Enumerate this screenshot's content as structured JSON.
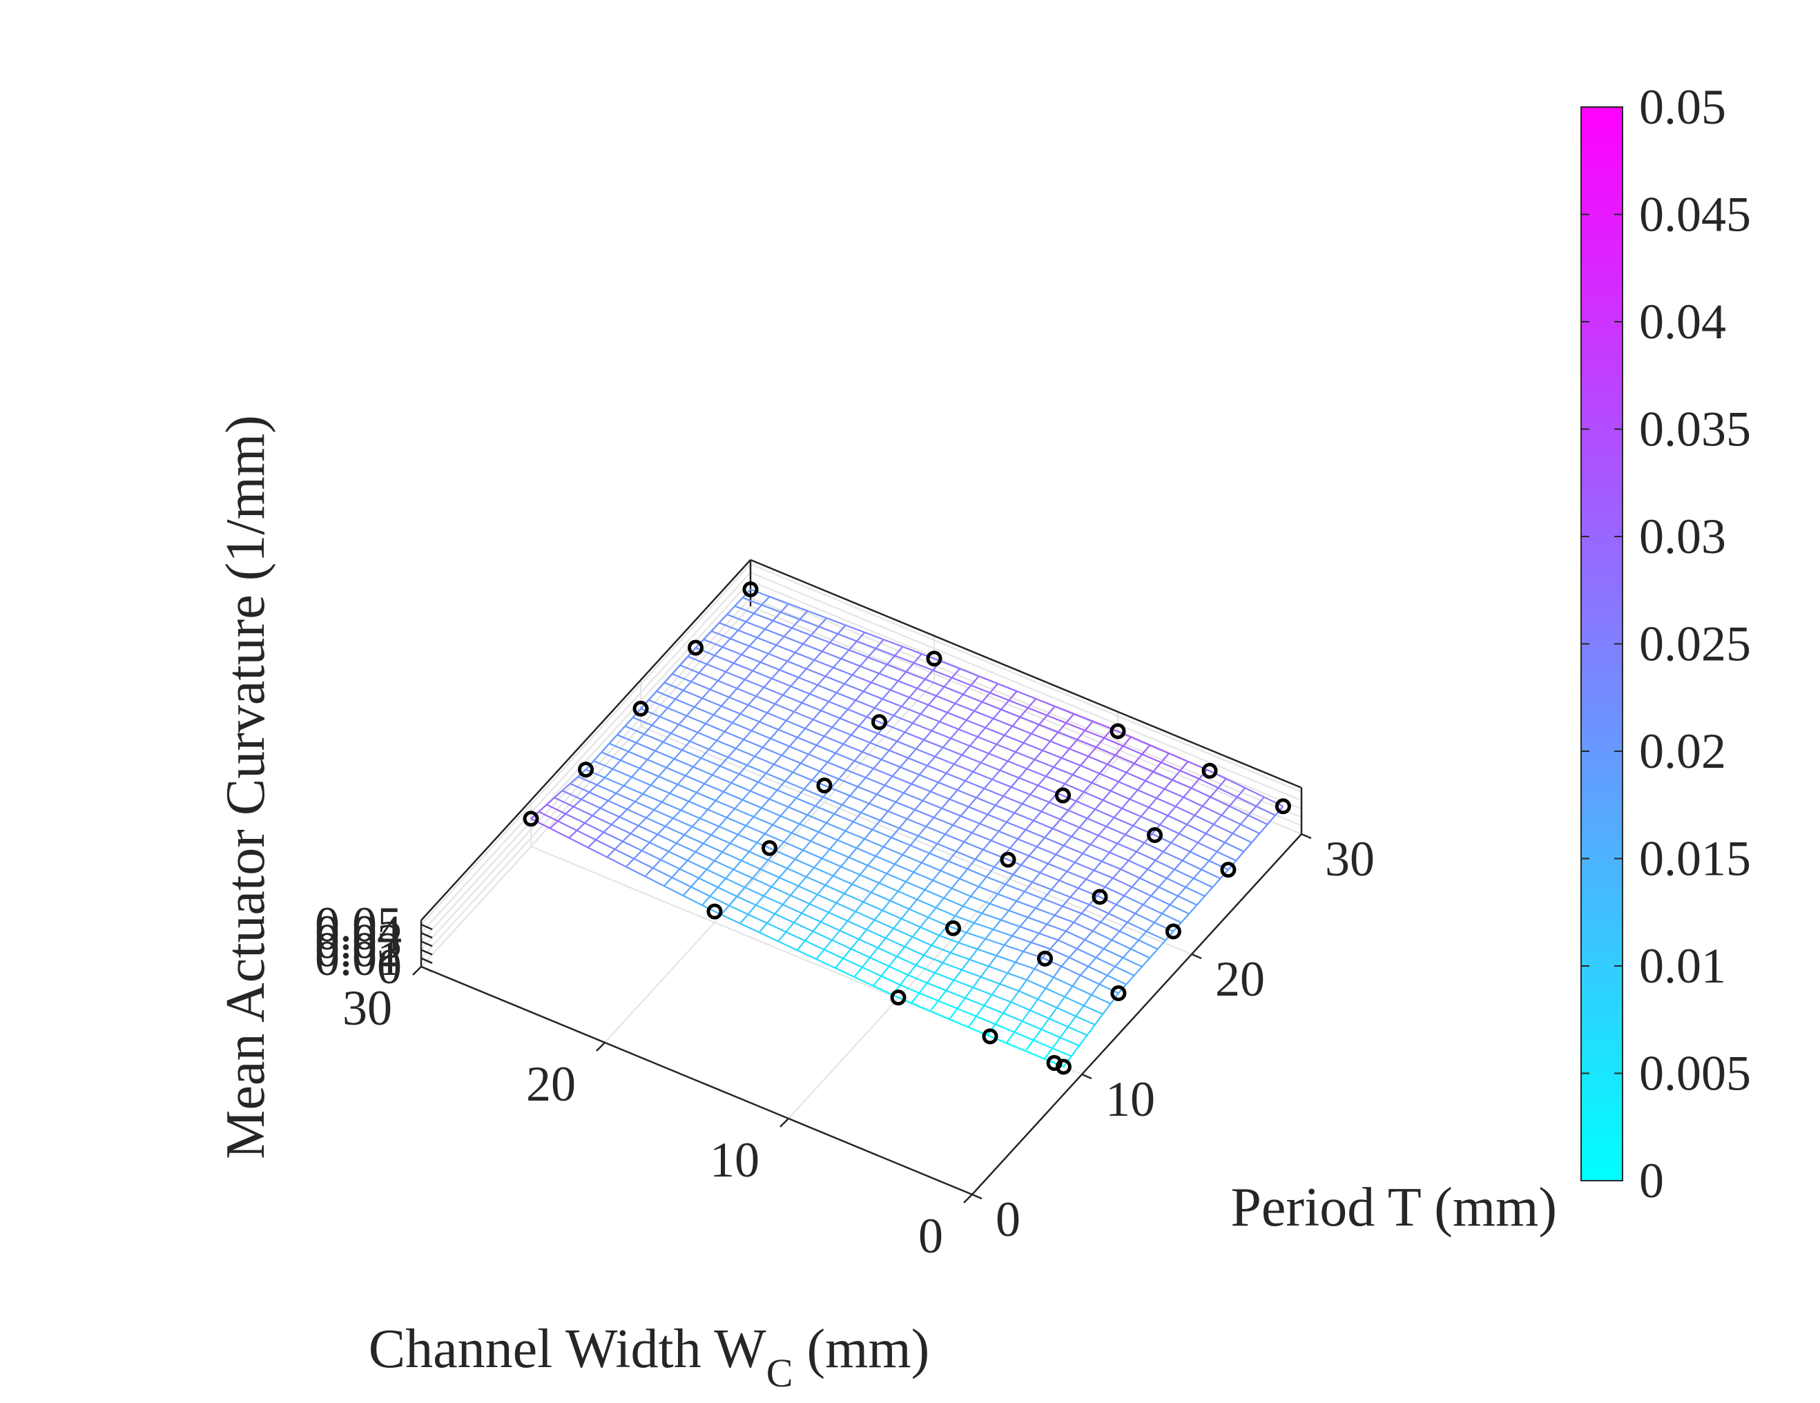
{
  "chart_data": {
    "type": "surface3d",
    "xlabel": "Channel Width W",
    "xlabel_subscript": "C",
    "xlabel_unit": " (mm)",
    "ylabel": "Period T (mm)",
    "zlabel": "Mean Actuator Curvature (1/mm)",
    "xlim": [
      0,
      30
    ],
    "ylim": [
      0,
      30
    ],
    "zlim": [
      0,
      0.055
    ],
    "x_ticks": [
      0,
      10,
      20,
      30
    ],
    "x_tick_labels": [
      "0",
      "10",
      "20",
      "30"
    ],
    "y_ticks": [
      0,
      10,
      20,
      30
    ],
    "y_tick_labels": [
      "0",
      "10",
      "20",
      "30"
    ],
    "z_ticks": [
      0,
      0.01,
      0.02,
      0.03,
      0.04,
      0.05
    ],
    "z_tick_labels": [
      "0",
      "0.01",
      "0.02",
      "0.03",
      "0.04",
      "0.05"
    ],
    "grid": true,
    "colorbar": {
      "range": [
        0,
        0.05
      ],
      "ticks": [
        0,
        0.005,
        0.01,
        0.015,
        0.02,
        0.025,
        0.03,
        0.035,
        0.04,
        0.045,
        0.05
      ],
      "tick_labels": [
        "0",
        "0.005",
        "0.01",
        "0.015",
        "0.02",
        "0.025",
        "0.03",
        "0.035",
        "0.04",
        "0.045",
        "0.05"
      ],
      "color_low": "#00ffff",
      "color_high": "#ff00ff",
      "placement": "right"
    },
    "marker_color": "#000000",
    "surface_style": "mesh",
    "x_grid": [
      1,
      5,
      10,
      20,
      30
    ],
    "y_grid": [
      10,
      15,
      20,
      25,
      30
    ],
    "z_grid": [
      [
        0.0,
        0.0,
        0.001,
        0.013,
        0.033
      ],
      [
        0.016,
        0.021,
        0.012,
        0.017,
        0.02
      ],
      [
        0.018,
        0.023,
        0.022,
        0.02,
        0.021
      ],
      [
        0.02,
        0.025,
        0.027,
        0.024,
        0.022
      ],
      [
        0.024,
        0.03,
        0.032,
        0.028,
        0.02
      ]
    ],
    "points": [
      {
        "x": 1,
        "y": 10,
        "z": 0.0
      },
      {
        "x": 1.5,
        "y": 10,
        "z": 0.0
      },
      {
        "x": 5,
        "y": 10,
        "z": 0.0
      },
      {
        "x": 10,
        "y": 10,
        "z": 0.001
      },
      {
        "x": 20,
        "y": 10,
        "z": 0.013
      },
      {
        "x": 30,
        "y": 10,
        "z": 0.033
      },
      {
        "x": 1,
        "y": 15,
        "z": 0.016
      },
      {
        "x": 5,
        "y": 15,
        "z": 0.021
      },
      {
        "x": 10,
        "y": 15,
        "z": 0.012
      },
      {
        "x": 20,
        "y": 15,
        "z": 0.017
      },
      {
        "x": 30,
        "y": 15,
        "z": 0.02
      },
      {
        "x": 1,
        "y": 20,
        "z": 0.018
      },
      {
        "x": 5,
        "y": 20,
        "z": 0.023
      },
      {
        "x": 10,
        "y": 20,
        "z": 0.022
      },
      {
        "x": 20,
        "y": 20,
        "z": 0.02
      },
      {
        "x": 30,
        "y": 20,
        "z": 0.021
      },
      {
        "x": 1,
        "y": 25,
        "z": 0.02
      },
      {
        "x": 5,
        "y": 25,
        "z": 0.025
      },
      {
        "x": 10,
        "y": 25,
        "z": 0.027
      },
      {
        "x": 20,
        "y": 25,
        "z": 0.024
      },
      {
        "x": 30,
        "y": 25,
        "z": 0.022
      },
      {
        "x": 1,
        "y": 30,
        "z": 0.024
      },
      {
        "x": 5,
        "y": 30,
        "z": 0.03
      },
      {
        "x": 10,
        "y": 30,
        "z": 0.032
      },
      {
        "x": 20,
        "y": 30,
        "z": 0.028
      },
      {
        "x": 30,
        "y": 30,
        "z": 0.02
      }
    ]
  }
}
